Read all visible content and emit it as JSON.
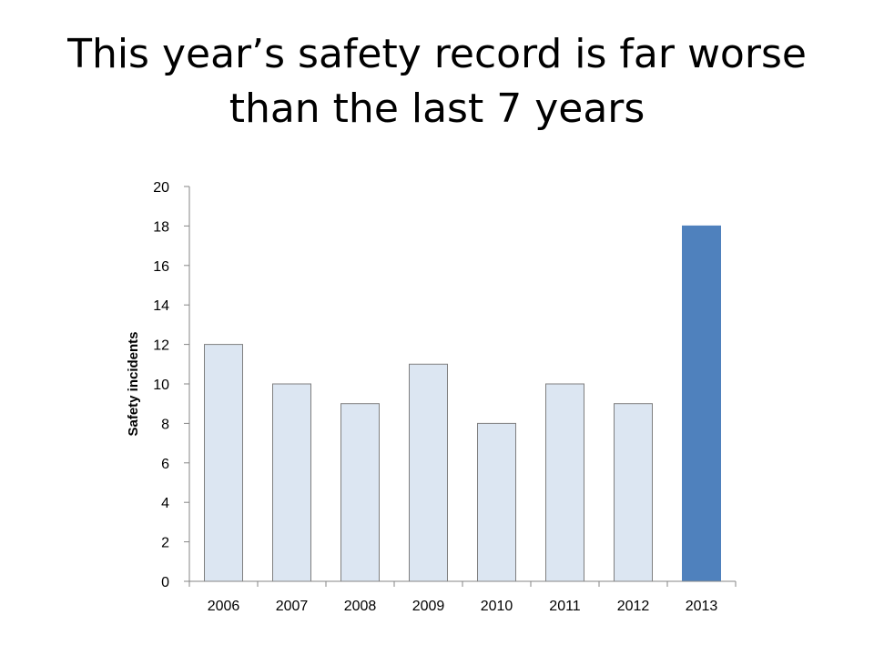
{
  "slide": {
    "title": "This year’s safety record is far worse than the last 7 years"
  },
  "chart_data": {
    "type": "bar",
    "categories": [
      "2006",
      "2007",
      "2008",
      "2009",
      "2010",
      "2011",
      "2012",
      "2013"
    ],
    "values": [
      12,
      10,
      9,
      11,
      8,
      10,
      9,
      18
    ],
    "title": "",
    "xlabel": "",
    "ylabel": "Safety incidents",
    "ylim": [
      0,
      20
    ],
    "yticks": [
      0,
      2,
      4,
      6,
      8,
      10,
      12,
      14,
      16,
      18,
      20
    ],
    "grid": false,
    "legend": "none",
    "colors": {
      "bar": "#dce6f2",
      "highlight_bar": "#4f81bd",
      "bar_stroke": "#7f7f7f",
      "axis": "#868686"
    },
    "highlight_category": "2013"
  }
}
